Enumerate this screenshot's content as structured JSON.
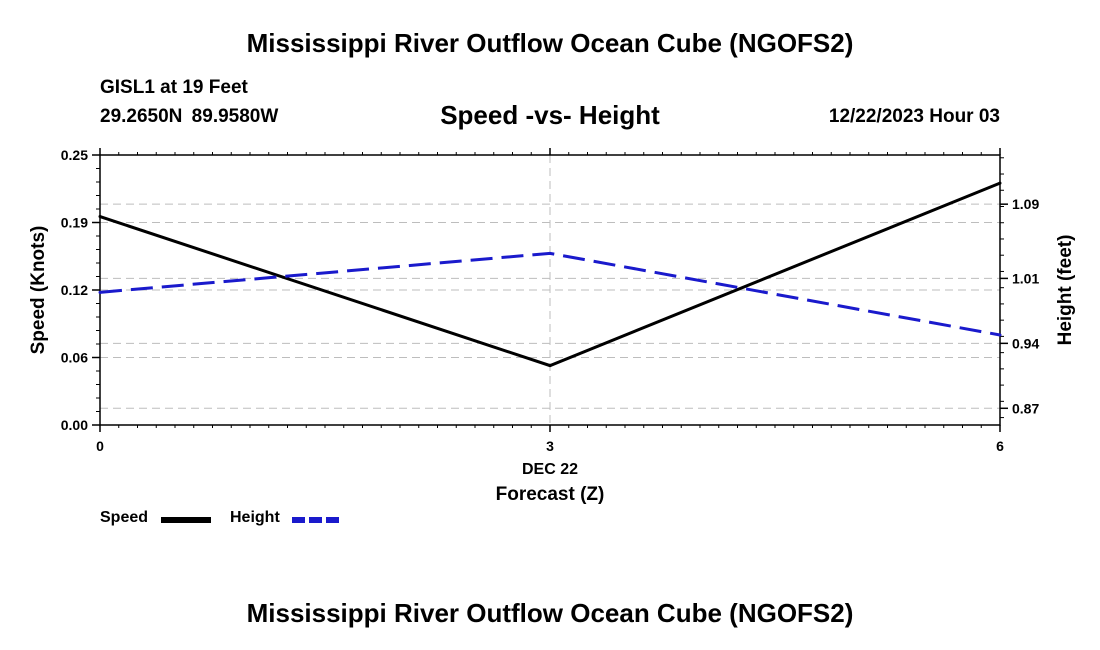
{
  "header": {
    "title": "Mississippi River Outflow Ocean Cube (NGOFS2)",
    "station_name": "GISL1 at 19 Feet",
    "station_coords": "29.2650N  89.9580W",
    "subtitle": "Speed -vs- Height",
    "forecast_time": "12/22/2023 Hour 03"
  },
  "footer": {
    "title": "Mississippi River Outflow Ocean Cube (NGOFS2)"
  },
  "chart_data": {
    "type": "line",
    "title": "Speed -vs- Height",
    "xlabel": "Forecast (Z)",
    "xlabel_date": "DEC 22",
    "ylabel": "Speed (Knots)",
    "y2label": "Height (feet)",
    "x": [
      0,
      3,
      6
    ],
    "x_ticks": [
      "0",
      "3",
      "6"
    ],
    "xlim": [
      0,
      6
    ],
    "ylim": [
      0,
      0.25
    ],
    "y_ticks": [
      "0.00",
      "0.06",
      "0.12",
      "0.19",
      "0.25"
    ],
    "y_tick_values": [
      0,
      0.0625,
      0.125,
      0.1875,
      0.25
    ],
    "y2lim": [
      0.852,
      1.143
    ],
    "y2_ticks": [
      "0.87",
      "0.94",
      "1.01",
      "1.09"
    ],
    "y2_tick_values": [
      0.87,
      0.94,
      1.01,
      1.09
    ],
    "grid": true,
    "series": [
      {
        "name": "Speed",
        "axis": "left",
        "color": "#000000",
        "dash": "solid",
        "values": [
          0.193,
          0.055,
          0.224
        ]
      },
      {
        "name": "Height",
        "axis": "right",
        "color": "#1a1acc",
        "dash": "dashed",
        "values": [
          0.995,
          1.037,
          0.949
        ]
      }
    ],
    "legend": [
      "Speed",
      "Height"
    ],
    "legend_position": "bottom-left"
  }
}
